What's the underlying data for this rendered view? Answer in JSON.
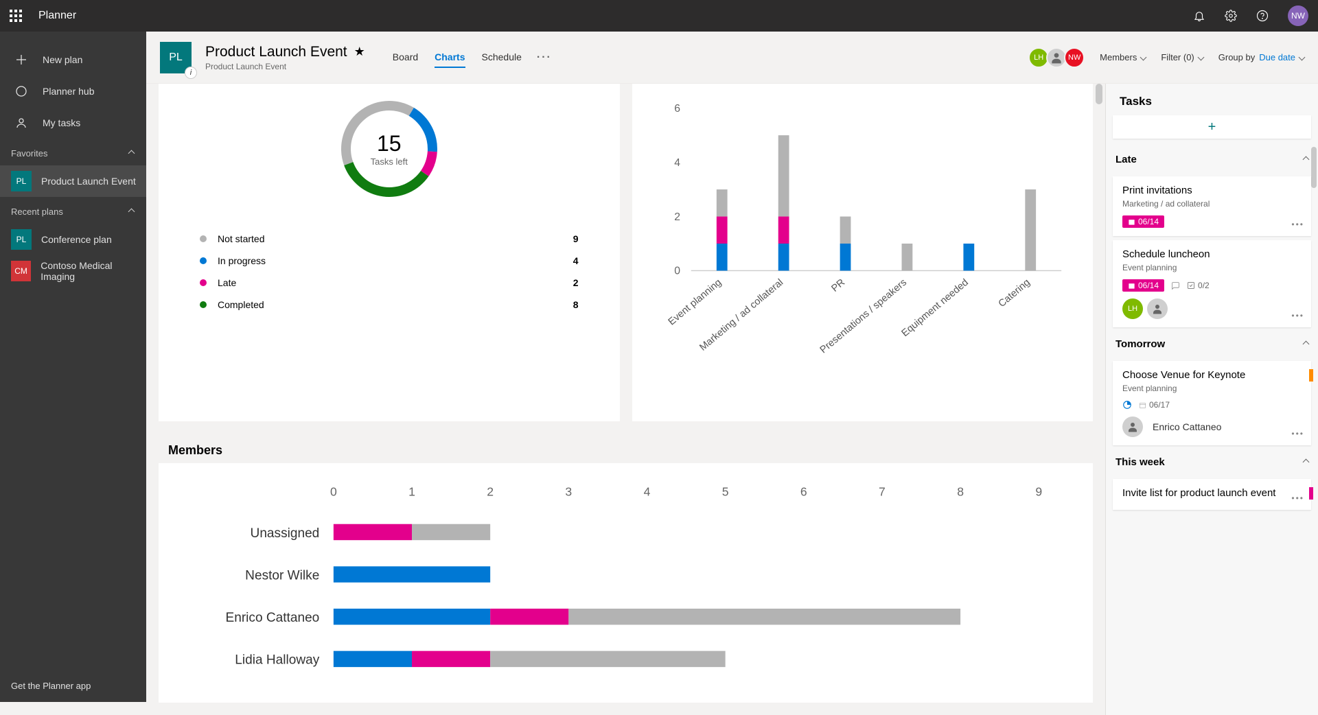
{
  "app": {
    "name": "Planner",
    "userInitials": "NW",
    "userColor": "#8764b8"
  },
  "sidebar": {
    "topItems": [
      {
        "label": "New plan"
      },
      {
        "label": "Planner hub"
      },
      {
        "label": "My tasks"
      }
    ],
    "favoritesLabel": "Favorites",
    "favorites": [
      {
        "initials": "PL",
        "color": "#03787c",
        "label": "Product Launch Event",
        "active": true
      }
    ],
    "recentLabel": "Recent plans",
    "recent": [
      {
        "initials": "PL",
        "color": "#03787c",
        "label": "Conference plan"
      },
      {
        "initials": "CM",
        "color": "#d13438",
        "label": "Contoso Medical Imaging"
      }
    ],
    "footer": "Get the Planner app"
  },
  "plan": {
    "initials": "PL",
    "badgeColor": "#03787c",
    "title": "Product Launch Event",
    "subtitle": "Product Launch Event",
    "tabs": [
      "Board",
      "Charts",
      "Schedule"
    ],
    "activeTab": 1,
    "members": [
      {
        "initials": "LH",
        "color": "#7fba00"
      },
      {
        "initials": "",
        "color": "#cfcfcf",
        "isPhoto": true
      },
      {
        "initials": "NW",
        "color": "#e81123"
      }
    ],
    "membersLabel": "Members",
    "filterLabel": "Filter (0)",
    "groupLabel": "Group by",
    "groupValue": "Due date"
  },
  "donut": {
    "total": 15,
    "totalLabel": "Tasks left",
    "segments": [
      {
        "label": "Not started",
        "value": 9,
        "color": "#b3b3b3"
      },
      {
        "label": "In progress",
        "value": 4,
        "color": "#0078d4"
      },
      {
        "label": "Late",
        "value": 2,
        "color": "#e3008c"
      },
      {
        "label": "Completed",
        "value": 8,
        "color": "#107c10"
      }
    ]
  },
  "bucketChart": {
    "type": "stacked-bar",
    "yMax": 6,
    "yStep": 2,
    "categories": [
      "Event planning",
      "Marketing / ad collateral",
      "PR",
      "Presentations / speakers",
      "Equipment needed",
      "Catering"
    ],
    "colors": {
      "notStarted": "#b3b3b3",
      "inProgress": "#0078d4",
      "late": "#e3008c"
    },
    "data": [
      {
        "inProgress": 1,
        "late": 1,
        "notStarted": 1
      },
      {
        "inProgress": 1,
        "late": 1,
        "notStarted": 3
      },
      {
        "inProgress": 1,
        "late": 0,
        "notStarted": 1
      },
      {
        "inProgress": 0,
        "late": 0,
        "notStarted": 1
      },
      {
        "inProgress": 1,
        "late": 0,
        "notStarted": 0
      },
      {
        "inProgress": 0,
        "late": 0,
        "notStarted": 3
      }
    ]
  },
  "membersChart": {
    "title": "Members",
    "xMax": 9,
    "xStep": 1,
    "rows": [
      {
        "name": "Unassigned",
        "inProgress": 0,
        "late": 1,
        "notStarted": 1,
        "completed": 0
      },
      {
        "name": "Nestor Wilke",
        "inProgress": 2,
        "late": 0,
        "notStarted": 0,
        "completed": 0
      },
      {
        "name": "Enrico Cattaneo",
        "inProgress": 2,
        "late": 1,
        "notStarted": 5,
        "completed": 0
      },
      {
        "name": "Lidia Halloway",
        "inProgress": 1,
        "late": 1,
        "notStarted": 3,
        "completed": 0
      }
    ],
    "colors": {
      "inProgress": "#0078d4",
      "late": "#e3008c",
      "notStarted": "#b3b3b3",
      "completed": "#107c10"
    }
  },
  "taskpane": {
    "title": "Tasks",
    "groups": [
      {
        "name": "Late",
        "tasks": [
          {
            "title": "Print invitations",
            "bucket": "Marketing / ad collateral",
            "dateBadge": "06/14"
          },
          {
            "title": "Schedule luncheon",
            "bucket": "Event planning",
            "dateBadge": "06/14",
            "hasComment": true,
            "checklist": "0/2",
            "assignees": [
              {
                "initials": "LH",
                "color": "#7fba00"
              },
              {
                "initials": "",
                "color": "#cfcfcf",
                "isPhoto": true
              }
            ]
          }
        ]
      },
      {
        "name": "Tomorrow",
        "tasks": [
          {
            "title": "Choose Venue for Keynote",
            "bucket": "Event planning",
            "progressIcon": true,
            "date": "06/17",
            "category": "#ff8c00",
            "assignees": [
              {
                "initials": "",
                "color": "#cfcfcf",
                "isPhoto": true,
                "name": "Enrico Cattaneo"
              }
            ]
          }
        ]
      },
      {
        "name": "This week",
        "tasks": [
          {
            "title": "Invite list for product launch event",
            "category": "#e3008c"
          }
        ]
      }
    ]
  }
}
